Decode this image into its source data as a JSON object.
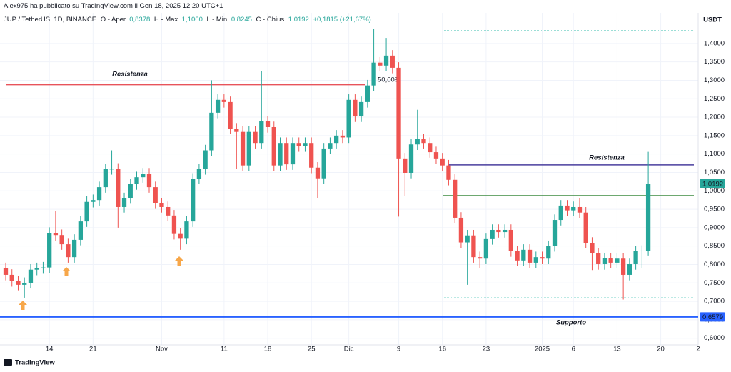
{
  "header": {
    "publisher": "Alex975 ha pubblicato su TradingView.com il Gen 18, 2025 12:20 UTC+1",
    "symbol": "JUP / TetherUS, 1D, BINANCE",
    "legend": [
      [
        "O - Aper.",
        "0,8378"
      ],
      [
        "H - Max.",
        "1,1060"
      ],
      [
        "L - Min.",
        "0,8245"
      ],
      [
        "C - Chius.",
        "1,0192"
      ]
    ],
    "change": "+0,1815 (+21,67%)"
  },
  "footer": {
    "brand": "TradingView"
  },
  "chart_data": {
    "type": "candlestick",
    "currency": "USDT",
    "up_color": "#26a69a",
    "down_color": "#ef5350",
    "grid": true,
    "ylim": [
      0.582,
      1.483
    ],
    "yticks": [
      {
        "value": 0.6,
        "label": "0,6000"
      },
      {
        "value": 0.65,
        "label": "0,6500"
      },
      {
        "value": 0.7,
        "label": "0,7000"
      },
      {
        "value": 0.75,
        "label": "0,7500"
      },
      {
        "value": 0.8,
        "label": "0,8000"
      },
      {
        "value": 0.85,
        "label": "0,8500"
      },
      {
        "value": 0.9,
        "label": "0,9000"
      },
      {
        "value": 0.95,
        "label": "0,9500"
      },
      {
        "value": 1.0,
        "label": "1,0000"
      },
      {
        "value": 1.05,
        "label": "1,0500"
      },
      {
        "value": 1.1,
        "label": "1,1000"
      },
      {
        "value": 1.15,
        "label": "1,1500"
      },
      {
        "value": 1.2,
        "label": "1,2000"
      },
      {
        "value": 1.25,
        "label": "1,2500"
      },
      {
        "value": 1.3,
        "label": "1,3000"
      },
      {
        "value": 1.35,
        "label": "1,3500"
      },
      {
        "value": 1.4,
        "label": "1,4000"
      }
    ],
    "categories": [
      null,
      null,
      null,
      null,
      null,
      null,
      null,
      "14",
      null,
      null,
      null,
      null,
      null,
      null,
      "21",
      null,
      null,
      null,
      null,
      null,
      null,
      null,
      null,
      null,
      null,
      "Nov",
      null,
      null,
      null,
      null,
      null,
      null,
      null,
      null,
      null,
      "11",
      null,
      null,
      null,
      null,
      null,
      null,
      "18",
      null,
      null,
      null,
      null,
      null,
      null,
      "25",
      null,
      null,
      null,
      null,
      null,
      "Dic",
      null,
      null,
      null,
      null,
      null,
      null,
      null,
      "9",
      null,
      null,
      null,
      null,
      null,
      null,
      "16",
      null,
      null,
      null,
      null,
      null,
      null,
      "23",
      null,
      null,
      null,
      null,
      null,
      null,
      null,
      null,
      "2025",
      null,
      null,
      null,
      null,
      "6",
      null,
      null,
      null,
      null,
      null,
      null,
      "13",
      null,
      null,
      null,
      null,
      null,
      null,
      "20",
      null,
      null,
      null,
      null,
      null,
      "2"
    ],
    "open": [
      0.79,
      0.772,
      0.755,
      0.745,
      0.75,
      0.786,
      0.79,
      0.792,
      0.886,
      0.88,
      0.855,
      0.82,
      0.867,
      0.917,
      0.97,
      0.975,
      1.01,
      1.059,
      1.06,
      0.956,
      0.98,
      1.018,
      1.037,
      1.047,
      1.01,
      0.966,
      0.956,
      0.933,
      0.883,
      0.87,
      0.917,
      1.033,
      1.059,
      1.11,
      1.212,
      1.247,
      1.241,
      1.169,
      1.16,
      1.069,
      1.16,
      1.13,
      1.189,
      1.173,
      1.069,
      1.13,
      1.072,
      1.13,
      1.121,
      1.13,
      1.063,
      1.034,
      1.115,
      1.13,
      1.15,
      1.145,
      1.247,
      1.202,
      1.241,
      1.286,
      1.348,
      1.34,
      1.367,
      1.334,
      1.088,
      1.049,
      1.126,
      1.14,
      1.13,
      1.105,
      1.088,
      1.069,
      1.03,
      0.927,
      0.86,
      0.879,
      0.82,
      0.816,
      0.869,
      0.894,
      0.888,
      0.894,
      0.836,
      0.811,
      0.84,
      0.805,
      0.82,
      0.816,
      0.85,
      0.921,
      0.96,
      0.947,
      0.956,
      0.941,
      0.859,
      0.83,
      0.801,
      0.817,
      0.805,
      0.816,
      0.772,
      0.801,
      0.836,
      0.8378,
      null,
      null,
      null,
      null,
      null,
      null,
      null,
      null
    ],
    "high": [
      0.805,
      0.787,
      0.77,
      0.765,
      0.801,
      0.805,
      0.807,
      0.901,
      0.945,
      0.895,
      0.87,
      0.882,
      0.932,
      0.985,
      0.99,
      1.025,
      1.074,
      1.11,
      1.075,
      0.995,
      1.033,
      1.052,
      1.062,
      1.062,
      1.025,
      0.981,
      0.971,
      0.948,
      0.898,
      0.932,
      1.048,
      1.074,
      1.125,
      1.3,
      1.262,
      1.262,
      1.256,
      1.184,
      1.175,
      1.175,
      1.175,
      1.325,
      1.204,
      1.188,
      1.145,
      1.145,
      1.145,
      1.145,
      1.145,
      1.145,
      1.078,
      1.13,
      1.145,
      1.165,
      1.165,
      1.262,
      1.262,
      1.256,
      1.301,
      1.44,
      1.363,
      1.415,
      1.382,
      1.349,
      1.103,
      1.141,
      1.22,
      1.155,
      1.145,
      1.12,
      1.103,
      1.084,
      1.045,
      0.942,
      0.894,
      0.894,
      0.835,
      0.884,
      0.909,
      0.909,
      0.909,
      0.909,
      0.851,
      0.855,
      0.855,
      0.835,
      0.835,
      0.865,
      0.936,
      0.975,
      0.975,
      0.971,
      0.98,
      0.956,
      0.874,
      0.845,
      0.832,
      0.832,
      0.831,
      0.831,
      0.816,
      0.851,
      0.852,
      1.106,
      null,
      null,
      null,
      null,
      null,
      null,
      null,
      null
    ],
    "low": [
      0.757,
      0.74,
      0.73,
      0.71,
      0.735,
      0.771,
      0.775,
      0.777,
      0.865,
      0.84,
      0.805,
      0.805,
      0.852,
      0.902,
      0.955,
      0.96,
      0.995,
      1.044,
      0.9,
      0.941,
      0.965,
      1.003,
      1.022,
      0.995,
      0.951,
      0.941,
      0.918,
      0.868,
      0.84,
      0.855,
      0.902,
      1.018,
      1.044,
      1.095,
      1.197,
      1.226,
      1.154,
      1.06,
      1.054,
      1.054,
      1.115,
      1.115,
      1.158,
      1.054,
      1.054,
      1.057,
      1.057,
      1.106,
      1.106,
      1.048,
      0.98,
      1.019,
      1.1,
      1.115,
      1.13,
      1.13,
      1.187,
      1.187,
      1.226,
      1.271,
      1.325,
      1.325,
      1.319,
      0.93,
      0.985,
      1.034,
      1.111,
      1.115,
      1.09,
      1.073,
      1.054,
      1.015,
      0.912,
      0.845,
      0.745,
      0.805,
      0.79,
      0.801,
      0.854,
      0.873,
      0.873,
      0.821,
      0.796,
      0.796,
      0.79,
      0.79,
      0.801,
      0.801,
      0.835,
      0.906,
      0.932,
      0.932,
      0.926,
      0.844,
      0.785,
      0.786,
      0.786,
      0.79,
      0.79,
      0.705,
      0.757,
      0.786,
      0.79,
      0.8245,
      null,
      null,
      null,
      null,
      null,
      null,
      null,
      null
    ],
    "close": [
      0.772,
      0.755,
      0.745,
      0.75,
      0.786,
      0.79,
      0.792,
      0.886,
      0.88,
      0.855,
      0.82,
      0.867,
      0.917,
      0.97,
      0.975,
      1.01,
      1.059,
      1.06,
      0.956,
      0.98,
      1.018,
      1.037,
      1.047,
      1.01,
      0.966,
      0.956,
      0.933,
      0.883,
      0.87,
      0.917,
      1.033,
      1.059,
      1.11,
      1.212,
      1.247,
      1.241,
      1.169,
      1.16,
      1.069,
      1.16,
      1.13,
      1.189,
      1.173,
      1.069,
      1.13,
      1.072,
      1.13,
      1.121,
      1.13,
      1.063,
      1.034,
      1.115,
      1.13,
      1.15,
      1.145,
      1.247,
      1.202,
      1.241,
      1.286,
      1.348,
      1.34,
      1.367,
      1.334,
      1.088,
      1.049,
      1.126,
      1.14,
      1.13,
      1.105,
      1.088,
      1.069,
      1.03,
      0.927,
      0.86,
      0.879,
      0.82,
      0.816,
      0.869,
      0.894,
      0.888,
      0.894,
      0.836,
      0.811,
      0.84,
      0.805,
      0.82,
      0.816,
      0.85,
      0.921,
      0.96,
      0.947,
      0.956,
      0.941,
      0.859,
      0.83,
      0.801,
      0.817,
      0.805,
      0.816,
      0.772,
      0.801,
      0.836,
      0.8378,
      1.0192,
      null,
      null,
      null,
      null,
      null,
      null,
      null,
      null
    ],
    "levels": [
      {
        "value": 1.288,
        "color": "#e8545b",
        "label": "Resistenza"
      },
      {
        "value": 0.6579,
        "color": "#2962ff",
        "label": "Supporto"
      },
      {
        "value": 1.0705,
        "color": "#4a3f9e",
        "label": "Resistenza",
        "label_color": "#b455c8"
      },
      {
        "value": 0.987,
        "color": "#3d8b40"
      },
      {
        "value": 1.435,
        "color": "#7ad3c8"
      },
      {
        "value": 0.71,
        "color": "#7ad3c8"
      }
    ],
    "annotations": [
      "50,00%"
    ],
    "price_labels": [
      {
        "value": 1.0192,
        "label": "1,0192",
        "color": "#26a69a"
      },
      {
        "value": 0.6579,
        "label": "0,6579",
        "color": "#2962ff"
      }
    ]
  }
}
